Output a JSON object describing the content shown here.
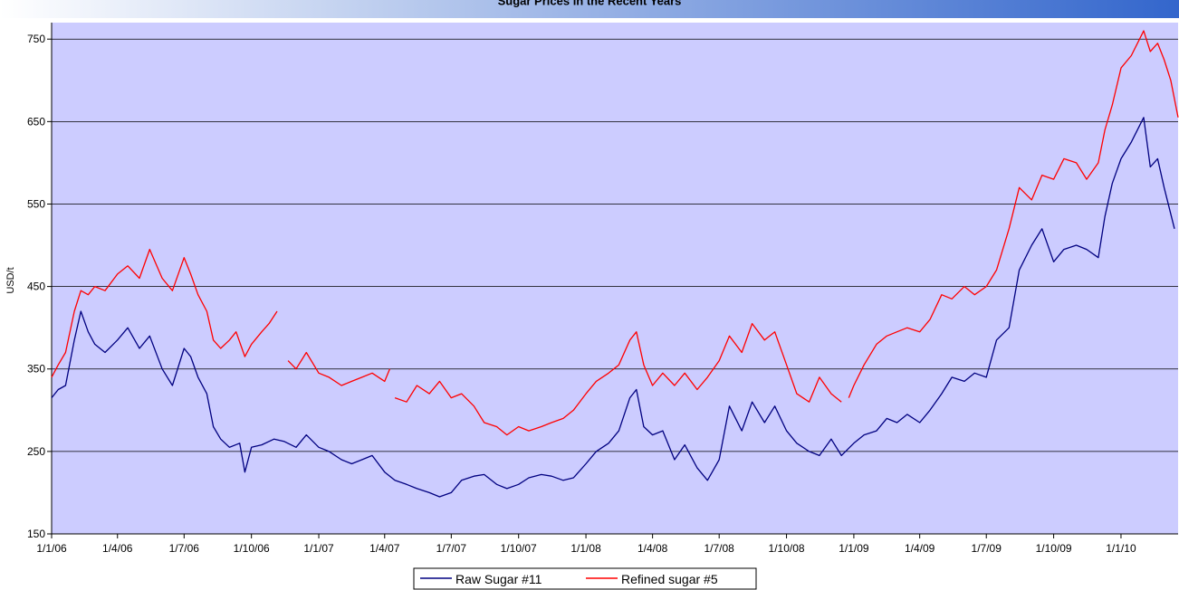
{
  "chart_data": {
    "type": "line",
    "title": "Sugar Prices in the Recent Years",
    "xlabel": "",
    "ylabel": "USD/t",
    "ylim": [
      150,
      770
    ],
    "yticks": [
      150,
      250,
      350,
      450,
      550,
      650,
      750
    ],
    "x_range": [
      "2006-01-01",
      "2010-03-20"
    ],
    "xticks": [
      {
        "label": "1/1/06",
        "date": "2006-01-01"
      },
      {
        "label": "1/4/06",
        "date": "2006-04-01"
      },
      {
        "label": "1/7/06",
        "date": "2006-07-01"
      },
      {
        "label": "1/10/06",
        "date": "2006-10-01"
      },
      {
        "label": "1/1/07",
        "date": "2007-01-01"
      },
      {
        "label": "1/4/07",
        "date": "2007-04-01"
      },
      {
        "label": "1/7/07",
        "date": "2007-07-01"
      },
      {
        "label": "1/10/07",
        "date": "2007-10-01"
      },
      {
        "label": "1/1/08",
        "date": "2008-01-01"
      },
      {
        "label": "1/4/08",
        "date": "2008-04-01"
      },
      {
        "label": "1/7/08",
        "date": "2008-07-01"
      },
      {
        "label": "1/10/08",
        "date": "2008-10-01"
      },
      {
        "label": "1/1/09",
        "date": "2009-01-01"
      },
      {
        "label": "1/4/09",
        "date": "2009-04-01"
      },
      {
        "label": "1/7/09",
        "date": "2009-07-01"
      },
      {
        "label": "1/10/09",
        "date": "2009-10-01"
      },
      {
        "label": "1/1/10",
        "date": "2010-01-01"
      }
    ],
    "grid": {
      "horizontal": true,
      "vertical": false
    },
    "legend_position": "bottom-center",
    "plot_background": "#ccccff",
    "series": [
      {
        "name": "Raw Sugar #11",
        "color": "#000080",
        "points": [
          [
            "2006-01-01",
            315
          ],
          [
            "2006-01-10",
            325
          ],
          [
            "2006-01-20",
            330
          ],
          [
            "2006-02-01",
            385
          ],
          [
            "2006-02-10",
            420
          ],
          [
            "2006-02-20",
            395
          ],
          [
            "2006-03-01",
            380
          ],
          [
            "2006-03-15",
            370
          ],
          [
            "2006-04-01",
            385
          ],
          [
            "2006-04-15",
            400
          ],
          [
            "2006-05-01",
            375
          ],
          [
            "2006-05-15",
            390
          ],
          [
            "2006-06-01",
            350
          ],
          [
            "2006-06-15",
            330
          ],
          [
            "2006-07-01",
            375
          ],
          [
            "2006-07-10",
            365
          ],
          [
            "2006-07-20",
            340
          ],
          [
            "2006-08-01",
            320
          ],
          [
            "2006-08-10",
            280
          ],
          [
            "2006-08-20",
            265
          ],
          [
            "2006-09-01",
            255
          ],
          [
            "2006-09-15",
            260
          ],
          [
            "2006-09-22",
            225
          ],
          [
            "2006-10-01",
            255
          ],
          [
            "2006-10-15",
            258
          ],
          [
            "2006-11-01",
            265
          ],
          [
            "2006-11-15",
            262
          ],
          [
            "2006-12-01",
            255
          ],
          [
            "2006-12-15",
            270
          ],
          [
            "2007-01-01",
            255
          ],
          [
            "2007-01-15",
            250
          ],
          [
            "2007-02-01",
            240
          ],
          [
            "2007-02-15",
            235
          ],
          [
            "2007-03-01",
            240
          ],
          [
            "2007-03-15",
            245
          ],
          [
            "2007-04-01",
            225
          ],
          [
            "2007-04-15",
            215
          ],
          [
            "2007-05-01",
            210
          ],
          [
            "2007-05-15",
            205
          ],
          [
            "2007-06-01",
            200
          ],
          [
            "2007-06-15",
            195
          ],
          [
            "2007-07-01",
            200
          ],
          [
            "2007-07-15",
            215
          ],
          [
            "2007-08-01",
            220
          ],
          [
            "2007-08-15",
            222
          ],
          [
            "2007-09-01",
            210
          ],
          [
            "2007-09-15",
            205
          ],
          [
            "2007-10-01",
            210
          ],
          [
            "2007-10-15",
            218
          ],
          [
            "2007-11-01",
            222
          ],
          [
            "2007-11-15",
            220
          ],
          [
            "2007-12-01",
            215
          ],
          [
            "2007-12-15",
            218
          ],
          [
            "2008-01-01",
            235
          ],
          [
            "2008-01-15",
            250
          ],
          [
            "2008-02-01",
            260
          ],
          [
            "2008-02-15",
            275
          ],
          [
            "2008-03-01",
            315
          ],
          [
            "2008-03-10",
            325
          ],
          [
            "2008-03-20",
            280
          ],
          [
            "2008-04-01",
            270
          ],
          [
            "2008-04-15",
            275
          ],
          [
            "2008-05-01",
            240
          ],
          [
            "2008-05-15",
            258
          ],
          [
            "2008-06-01",
            230
          ],
          [
            "2008-06-15",
            215
          ],
          [
            "2008-07-01",
            240
          ],
          [
            "2008-07-15",
            305
          ],
          [
            "2008-08-01",
            275
          ],
          [
            "2008-08-15",
            310
          ],
          [
            "2008-09-01",
            285
          ],
          [
            "2008-09-15",
            305
          ],
          [
            "2008-10-01",
            275
          ],
          [
            "2008-10-15",
            260
          ],
          [
            "2008-11-01",
            250
          ],
          [
            "2008-11-15",
            245
          ],
          [
            "2008-12-01",
            265
          ],
          [
            "2008-12-15",
            245
          ],
          [
            "2009-01-01",
            260
          ],
          [
            "2009-01-15",
            270
          ],
          [
            "2009-02-01",
            275
          ],
          [
            "2009-02-15",
            290
          ],
          [
            "2009-03-01",
            285
          ],
          [
            "2009-03-15",
            295
          ],
          [
            "2009-04-01",
            285
          ],
          [
            "2009-04-15",
            300
          ],
          [
            "2009-05-01",
            320
          ],
          [
            "2009-05-15",
            340
          ],
          [
            "2009-06-01",
            335
          ],
          [
            "2009-06-15",
            345
          ],
          [
            "2009-07-01",
            340
          ],
          [
            "2009-07-15",
            385
          ],
          [
            "2009-08-01",
            400
          ],
          [
            "2009-08-15",
            470
          ],
          [
            "2009-09-01",
            500
          ],
          [
            "2009-09-15",
            520
          ],
          [
            "2009-10-01",
            480
          ],
          [
            "2009-10-15",
            495
          ],
          [
            "2009-11-01",
            500
          ],
          [
            "2009-11-15",
            495
          ],
          [
            "2009-12-01",
            485
          ],
          [
            "2009-12-10",
            535
          ],
          [
            "2009-12-20",
            575
          ],
          [
            "2010-01-01",
            605
          ],
          [
            "2010-01-15",
            625
          ],
          [
            "2010-02-01",
            655
          ],
          [
            "2010-02-10",
            595
          ],
          [
            "2010-02-20",
            605
          ],
          [
            "2010-03-01",
            570
          ],
          [
            "2010-03-15",
            520
          ]
        ]
      },
      {
        "name": "Refined sugar #5",
        "color": "#ff0000",
        "segments": [
          [
            [
              "2006-01-01",
              340
            ],
            [
              "2006-01-10",
              355
            ],
            [
              "2006-01-20",
              370
            ],
            [
              "2006-02-01",
              420
            ],
            [
              "2006-02-10",
              445
            ],
            [
              "2006-02-20",
              440
            ],
            [
              "2006-03-01",
              450
            ],
            [
              "2006-03-15",
              445
            ],
            [
              "2006-04-01",
              465
            ],
            [
              "2006-04-15",
              475
            ],
            [
              "2006-05-01",
              460
            ],
            [
              "2006-05-15",
              495
            ],
            [
              "2006-06-01",
              460
            ],
            [
              "2006-06-15",
              445
            ],
            [
              "2006-07-01",
              485
            ],
            [
              "2006-07-10",
              465
            ],
            [
              "2006-07-20",
              440
            ],
            [
              "2006-08-01",
              420
            ],
            [
              "2006-08-10",
              385
            ],
            [
              "2006-08-20",
              375
            ],
            [
              "2006-09-01",
              385
            ],
            [
              "2006-09-10",
              395
            ],
            [
              "2006-09-22",
              365
            ],
            [
              "2006-10-01",
              380
            ],
            [
              "2006-10-15",
              395
            ],
            [
              "2006-10-25",
              405
            ],
            [
              "2006-11-05",
              420
            ]
          ],
          [
            [
              "2006-11-20",
              360
            ],
            [
              "2006-12-01",
              350
            ],
            [
              "2006-12-15",
              370
            ],
            [
              "2007-01-01",
              345
            ],
            [
              "2007-01-15",
              340
            ],
            [
              "2007-02-01",
              330
            ],
            [
              "2007-02-15",
              335
            ],
            [
              "2007-03-01",
              340
            ],
            [
              "2007-03-15",
              345
            ],
            [
              "2007-04-01",
              335
            ],
            [
              "2007-04-08",
              350
            ]
          ],
          [
            [
              "2007-04-15",
              315
            ],
            [
              "2007-05-01",
              310
            ],
            [
              "2007-05-15",
              330
            ],
            [
              "2007-06-01",
              320
            ],
            [
              "2007-06-15",
              335
            ],
            [
              "2007-07-01",
              315
            ],
            [
              "2007-07-15",
              320
            ],
            [
              "2007-08-01",
              305
            ],
            [
              "2007-08-15",
              285
            ],
            [
              "2007-09-01",
              280
            ],
            [
              "2007-09-15",
              270
            ],
            [
              "2007-10-01",
              280
            ],
            [
              "2007-10-15",
              275
            ],
            [
              "2007-11-01",
              280
            ],
            [
              "2007-11-15",
              285
            ],
            [
              "2007-12-01",
              290
            ],
            [
              "2007-12-15",
              300
            ],
            [
              "2008-01-01",
              320
            ],
            [
              "2008-01-15",
              335
            ],
            [
              "2008-02-01",
              345
            ],
            [
              "2008-02-15",
              355
            ],
            [
              "2008-03-01",
              385
            ],
            [
              "2008-03-10",
              395
            ],
            [
              "2008-03-20",
              355
            ],
            [
              "2008-04-01",
              330
            ],
            [
              "2008-04-15",
              345
            ],
            [
              "2008-05-01",
              330
            ],
            [
              "2008-05-15",
              345
            ],
            [
              "2008-06-01",
              325
            ],
            [
              "2008-06-15",
              340
            ],
            [
              "2008-07-01",
              360
            ],
            [
              "2008-07-15",
              390
            ],
            [
              "2008-08-01",
              370
            ],
            [
              "2008-08-15",
              405
            ],
            [
              "2008-09-01",
              385
            ],
            [
              "2008-09-15",
              395
            ],
            [
              "2008-10-01",
              355
            ],
            [
              "2008-10-15",
              320
            ],
            [
              "2008-11-01",
              310
            ],
            [
              "2008-11-15",
              340
            ],
            [
              "2008-12-01",
              320
            ],
            [
              "2008-12-15",
              310
            ]
          ],
          [
            [
              "2008-12-25",
              315
            ],
            [
              "2009-01-01",
              330
            ],
            [
              "2009-01-15",
              355
            ],
            [
              "2009-02-01",
              380
            ],
            [
              "2009-02-15",
              390
            ],
            [
              "2009-03-01",
              395
            ],
            [
              "2009-03-15",
              400
            ],
            [
              "2009-04-01",
              395
            ],
            [
              "2009-04-15",
              410
            ],
            [
              "2009-05-01",
              440
            ],
            [
              "2009-05-15",
              435
            ],
            [
              "2009-06-01",
              450
            ],
            [
              "2009-06-15",
              440
            ],
            [
              "2009-07-01",
              450
            ],
            [
              "2009-07-15",
              470
            ],
            [
              "2009-08-01",
              520
            ],
            [
              "2009-08-15",
              570
            ],
            [
              "2009-09-01",
              555
            ],
            [
              "2009-09-15",
              585
            ],
            [
              "2009-10-01",
              580
            ],
            [
              "2009-10-15",
              605
            ],
            [
              "2009-11-01",
              600
            ],
            [
              "2009-11-15",
              580
            ],
            [
              "2009-12-01",
              600
            ],
            [
              "2009-12-10",
              640
            ],
            [
              "2009-12-20",
              670
            ],
            [
              "2010-01-01",
              715
            ],
            [
              "2010-01-15",
              730
            ],
            [
              "2010-02-01",
              760
            ],
            [
              "2010-02-10",
              735
            ],
            [
              "2010-02-20",
              745
            ],
            [
              "2010-03-01",
              725
            ],
            [
              "2010-03-10",
              700
            ],
            [
              "2010-03-20",
              655
            ]
          ]
        ]
      }
    ]
  }
}
